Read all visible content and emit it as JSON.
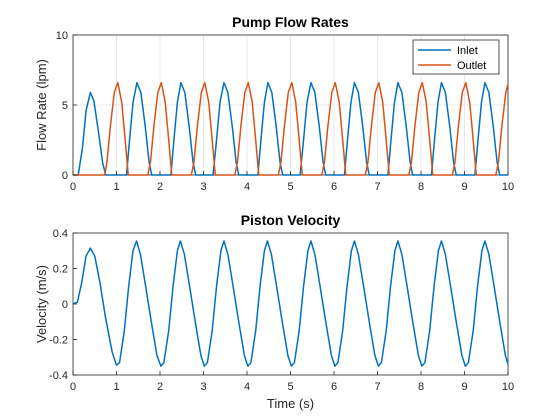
{
  "chart_data": [
    {
      "type": "line",
      "title": "Pump Flow Rates",
      "xlabel": "",
      "ylabel": "Flow Rate (lpm)",
      "xlim": [
        0,
        10
      ],
      "ylim": [
        0,
        10
      ],
      "xticks": [
        "0",
        "1",
        "2",
        "3",
        "4",
        "5",
        "6",
        "7",
        "8",
        "9",
        "10"
      ],
      "yticks": [
        "0",
        "5",
        "10"
      ],
      "grid": true,
      "legend": "top-right",
      "series": [
        {
          "name": "Inlet",
          "color": "#0072BD",
          "points": [
            [
              0,
              0
            ],
            [
              0.12,
              0
            ],
            [
              0.22,
              2.0
            ],
            [
              0.3,
              4.6
            ],
            [
              0.4,
              5.9
            ],
            [
              0.48,
              5.3
            ],
            [
              0.58,
              3.2
            ],
            [
              0.68,
              0.9
            ],
            [
              0.75,
              0
            ],
            [
              1.2,
              0
            ],
            [
              1.23,
              0
            ],
            [
              1.3,
              2.5
            ],
            [
              1.38,
              5.2
            ],
            [
              1.47,
              6.6
            ],
            [
              1.56,
              5.9
            ],
            [
              1.66,
              3.5
            ],
            [
              1.75,
              0.9
            ],
            [
              1.81,
              0
            ],
            [
              2.2,
              0
            ],
            [
              2.25,
              0
            ],
            [
              2.32,
              2.5
            ],
            [
              2.4,
              5.2
            ],
            [
              2.48,
              6.6
            ],
            [
              2.57,
              5.9
            ],
            [
              2.67,
              3.5
            ],
            [
              2.76,
              0.9
            ],
            [
              2.82,
              0
            ],
            [
              3.2,
              0
            ],
            [
              3.22,
              0
            ],
            [
              3.3,
              2.5
            ],
            [
              3.38,
              5.2
            ],
            [
              3.47,
              6.6
            ],
            [
              3.56,
              5.9
            ],
            [
              3.66,
              3.5
            ],
            [
              3.75,
              0.9
            ],
            [
              3.81,
              0
            ],
            [
              4.2,
              0
            ],
            [
              4.25,
              0
            ],
            [
              4.32,
              2.5
            ],
            [
              4.4,
              5.2
            ],
            [
              4.48,
              6.6
            ],
            [
              4.57,
              5.9
            ],
            [
              4.67,
              3.5
            ],
            [
              4.76,
              0.9
            ],
            [
              4.82,
              0
            ],
            [
              5.2,
              0
            ],
            [
              5.22,
              0
            ],
            [
              5.3,
              2.5
            ],
            [
              5.38,
              5.2
            ],
            [
              5.47,
              6.6
            ],
            [
              5.56,
              5.9
            ],
            [
              5.66,
              3.5
            ],
            [
              5.75,
              0.9
            ],
            [
              5.81,
              0
            ],
            [
              6.2,
              0
            ],
            [
              6.24,
              0
            ],
            [
              6.31,
              2.5
            ],
            [
              6.39,
              5.2
            ],
            [
              6.47,
              6.6
            ],
            [
              6.56,
              5.9
            ],
            [
              6.66,
              3.5
            ],
            [
              6.75,
              0.9
            ],
            [
              6.81,
              0
            ],
            [
              7.2,
              0
            ],
            [
              7.24,
              0
            ],
            [
              7.31,
              2.5
            ],
            [
              7.39,
              5.2
            ],
            [
              7.47,
              6.6
            ],
            [
              7.56,
              5.9
            ],
            [
              7.66,
              3.5
            ],
            [
              7.75,
              0.9
            ],
            [
              7.81,
              0
            ],
            [
              8.2,
              0
            ],
            [
              8.24,
              0
            ],
            [
              8.31,
              2.5
            ],
            [
              8.39,
              5.2
            ],
            [
              8.47,
              6.6
            ],
            [
              8.56,
              5.9
            ],
            [
              8.66,
              3.5
            ],
            [
              8.75,
              0.9
            ],
            [
              8.81,
              0
            ],
            [
              9.2,
              0
            ],
            [
              9.24,
              0
            ],
            [
              9.31,
              2.5
            ],
            [
              9.39,
              5.2
            ],
            [
              9.47,
              6.6
            ],
            [
              9.56,
              5.9
            ],
            [
              9.66,
              3.5
            ],
            [
              9.75,
              0.9
            ],
            [
              9.81,
              0
            ],
            [
              10,
              0
            ]
          ]
        },
        {
          "name": "Outlet",
          "color": "#D95319",
          "points": [
            [
              0,
              0
            ],
            [
              0.73,
              0
            ],
            [
              0.78,
              0.9
            ],
            [
              0.86,
              3.5
            ],
            [
              0.95,
              5.9
            ],
            [
              1.03,
              6.6
            ],
            [
              1.12,
              5.2
            ],
            [
              1.2,
              2.5
            ],
            [
              1.27,
              0
            ],
            [
              1.72,
              0
            ],
            [
              1.78,
              0.9
            ],
            [
              1.86,
              3.5
            ],
            [
              1.95,
              5.9
            ],
            [
              2.03,
              6.6
            ],
            [
              2.12,
              5.2
            ],
            [
              2.2,
              2.5
            ],
            [
              2.27,
              0
            ],
            [
              2.72,
              0
            ],
            [
              2.78,
              0.9
            ],
            [
              2.86,
              3.5
            ],
            [
              2.95,
              5.9
            ],
            [
              3.03,
              6.6
            ],
            [
              3.12,
              5.2
            ],
            [
              3.2,
              2.5
            ],
            [
              3.27,
              0
            ],
            [
              3.72,
              0
            ],
            [
              3.78,
              0.9
            ],
            [
              3.86,
              3.5
            ],
            [
              3.95,
              5.9
            ],
            [
              4.03,
              6.6
            ],
            [
              4.12,
              5.2
            ],
            [
              4.2,
              2.5
            ],
            [
              4.27,
              0
            ],
            [
              4.72,
              0
            ],
            [
              4.78,
              0.9
            ],
            [
              4.86,
              3.5
            ],
            [
              4.95,
              5.9
            ],
            [
              5.03,
              6.6
            ],
            [
              5.12,
              5.2
            ],
            [
              5.2,
              2.5
            ],
            [
              5.27,
              0
            ],
            [
              5.72,
              0
            ],
            [
              5.78,
              0.9
            ],
            [
              5.86,
              3.5
            ],
            [
              5.95,
              5.9
            ],
            [
              6.03,
              6.6
            ],
            [
              6.12,
              5.2
            ],
            [
              6.2,
              2.5
            ],
            [
              6.27,
              0
            ],
            [
              6.72,
              0
            ],
            [
              6.78,
              0.9
            ],
            [
              6.86,
              3.5
            ],
            [
              6.95,
              5.9
            ],
            [
              7.03,
              6.6
            ],
            [
              7.12,
              5.2
            ],
            [
              7.2,
              2.5
            ],
            [
              7.27,
              0
            ],
            [
              7.72,
              0
            ],
            [
              7.78,
              0.9
            ],
            [
              7.86,
              3.5
            ],
            [
              7.95,
              5.9
            ],
            [
              8.03,
              6.6
            ],
            [
              8.12,
              5.2
            ],
            [
              8.2,
              2.5
            ],
            [
              8.27,
              0
            ],
            [
              8.72,
              0
            ],
            [
              8.78,
              0.9
            ],
            [
              8.86,
              3.5
            ],
            [
              8.95,
              5.9
            ],
            [
              9.03,
              6.6
            ],
            [
              9.12,
              5.2
            ],
            [
              9.2,
              2.5
            ],
            [
              9.27,
              0
            ],
            [
              9.72,
              0
            ],
            [
              9.78,
              0.9
            ],
            [
              9.86,
              3.5
            ],
            [
              9.95,
              5.9
            ],
            [
              10,
              6.5
            ]
          ]
        }
      ]
    },
    {
      "type": "line",
      "title": "Piston Velocity",
      "xlabel": "Time (s)",
      "ylabel": "Velocity (m/s)",
      "xlim": [
        0,
        10
      ],
      "ylim": [
        -0.4,
        0.4
      ],
      "xticks": [
        "0",
        "1",
        "2",
        "3",
        "4",
        "5",
        "6",
        "7",
        "8",
        "9",
        "10"
      ],
      "yticks": [
        "-0.4",
        "-0.2",
        "0",
        "0.2",
        "0.4"
      ],
      "grid": false,
      "series": [
        {
          "name": "",
          "color": "#0072BD",
          "points": [
            [
              0,
              0
            ],
            [
              0.1,
              0.01
            ],
            [
              0.2,
              0.12
            ],
            [
              0.3,
              0.27
            ],
            [
              0.4,
              0.315
            ],
            [
              0.5,
              0.27
            ],
            [
              0.62,
              0.12
            ],
            [
              0.75,
              -0.08
            ],
            [
              0.9,
              -0.27
            ],
            [
              1.0,
              -0.345
            ],
            [
              1.07,
              -0.33
            ],
            [
              1.18,
              -0.15
            ],
            [
              1.28,
              0.1
            ],
            [
              1.38,
              0.3
            ],
            [
              1.46,
              0.355
            ],
            [
              1.55,
              0.28
            ],
            [
              1.67,
              0.1
            ],
            [
              1.8,
              -0.1
            ],
            [
              1.93,
              -0.29
            ],
            [
              2.02,
              -0.35
            ],
            [
              2.09,
              -0.33
            ],
            [
              2.2,
              -0.15
            ],
            [
              2.3,
              0.1
            ],
            [
              2.4,
              0.3
            ],
            [
              2.47,
              0.355
            ],
            [
              2.56,
              0.28
            ],
            [
              2.68,
              0.1
            ],
            [
              2.81,
              -0.1
            ],
            [
              2.94,
              -0.29
            ],
            [
              3.02,
              -0.35
            ],
            [
              3.09,
              -0.33
            ],
            [
              3.2,
              -0.15
            ],
            [
              3.3,
              0.1
            ],
            [
              3.4,
              0.3
            ],
            [
              3.47,
              0.355
            ],
            [
              3.56,
              0.28
            ],
            [
              3.68,
              0.1
            ],
            [
              3.81,
              -0.1
            ],
            [
              3.94,
              -0.29
            ],
            [
              4.02,
              -0.35
            ],
            [
              4.09,
              -0.33
            ],
            [
              4.2,
              -0.15
            ],
            [
              4.3,
              0.1
            ],
            [
              4.4,
              0.3
            ],
            [
              4.47,
              0.355
            ],
            [
              4.56,
              0.28
            ],
            [
              4.68,
              0.1
            ],
            [
              4.81,
              -0.1
            ],
            [
              4.94,
              -0.29
            ],
            [
              5.02,
              -0.35
            ],
            [
              5.09,
              -0.33
            ],
            [
              5.2,
              -0.15
            ],
            [
              5.3,
              0.1
            ],
            [
              5.4,
              0.3
            ],
            [
              5.47,
              0.355
            ],
            [
              5.56,
              0.28
            ],
            [
              5.68,
              0.1
            ],
            [
              5.81,
              -0.1
            ],
            [
              5.94,
              -0.29
            ],
            [
              6.02,
              -0.35
            ],
            [
              6.09,
              -0.33
            ],
            [
              6.2,
              -0.15
            ],
            [
              6.3,
              0.1
            ],
            [
              6.4,
              0.3
            ],
            [
              6.47,
              0.355
            ],
            [
              6.56,
              0.28
            ],
            [
              6.68,
              0.1
            ],
            [
              6.81,
              -0.1
            ],
            [
              6.94,
              -0.29
            ],
            [
              7.02,
              -0.35
            ],
            [
              7.09,
              -0.33
            ],
            [
              7.2,
              -0.15
            ],
            [
              7.3,
              0.1
            ],
            [
              7.4,
              0.3
            ],
            [
              7.47,
              0.355
            ],
            [
              7.56,
              0.28
            ],
            [
              7.68,
              0.1
            ],
            [
              7.81,
              -0.1
            ],
            [
              7.94,
              -0.29
            ],
            [
              8.02,
              -0.35
            ],
            [
              8.09,
              -0.33
            ],
            [
              8.2,
              -0.15
            ],
            [
              8.3,
              0.1
            ],
            [
              8.4,
              0.3
            ],
            [
              8.47,
              0.355
            ],
            [
              8.56,
              0.28
            ],
            [
              8.68,
              0.1
            ],
            [
              8.81,
              -0.1
            ],
            [
              8.94,
              -0.29
            ],
            [
              9.02,
              -0.35
            ],
            [
              9.09,
              -0.33
            ],
            [
              9.2,
              -0.15
            ],
            [
              9.3,
              0.1
            ],
            [
              9.4,
              0.3
            ],
            [
              9.47,
              0.355
            ],
            [
              9.56,
              0.28
            ],
            [
              9.68,
              0.1
            ],
            [
              9.81,
              -0.1
            ],
            [
              9.94,
              -0.29
            ],
            [
              10,
              -0.34
            ]
          ]
        }
      ]
    }
  ]
}
